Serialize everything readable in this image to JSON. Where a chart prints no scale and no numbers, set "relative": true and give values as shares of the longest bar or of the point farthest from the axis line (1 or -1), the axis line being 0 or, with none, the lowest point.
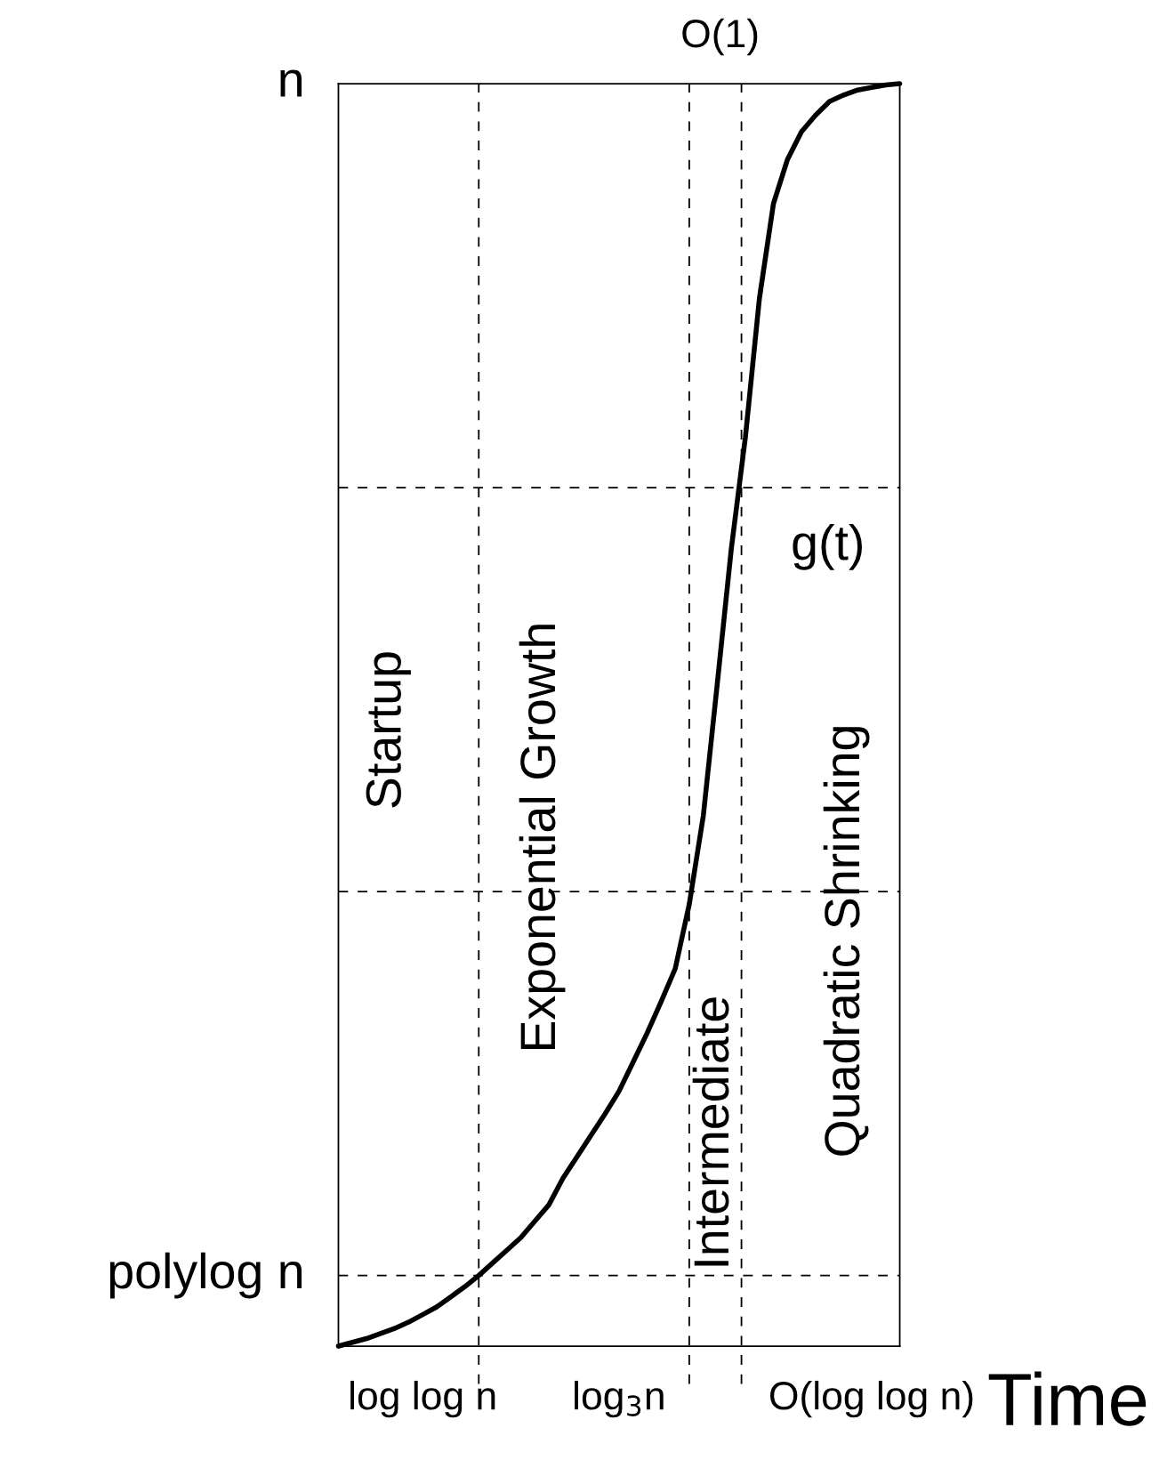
{
  "chart_data": {
    "type": "line",
    "relative": true,
    "xlabel": "Time",
    "tick_labels": "x",
    "grid": false,
    "legend": false,
    "categories": [
      null,
      null,
      null,
      null,
      null,
      null,
      "log log n",
      null,
      null,
      null,
      null,
      null,
      null,
      null,
      null,
      null,
      null,
      null,
      null,
      null,
      "log$_{3}$n",
      null,
      null,
      null,
      null,
      null,
      null,
      null,
      null,
      null,
      null,
      null,
      null,
      null,
      null,
      null,
      null,
      null,
      "O(log log n)",
      null,
      null
    ],
    "series": [
      {
        "color": "#000000",
        "values": [
          0,
          0.003,
          0.006,
          0.01,
          0.014,
          0.019,
          0.025,
          0.031,
          0.039,
          0.047,
          0.056,
          0.066,
          0.076,
          0.086,
          0.099,
          0.112,
          0.133,
          0.15,
          0.167,
          0.184,
          0.202,
          0.225,
          0.248,
          0.273,
          0.299,
          0.35,
          0.42,
          0.525,
          0.632,
          0.72,
          0.83,
          0.905,
          0.94,
          0.962,
          0.975,
          0.986,
          0.991,
          0.995,
          0.997,
          0.999,
          1
        ]
      }
    ],
    "ref_lines": [
      {
        "axis": "y",
        "value": 0.056,
        "label": "polylog n",
        "line_style": "dashed"
      },
      {
        "axis": "y",
        "value": 0.36,
        "line_style": "dashed"
      },
      {
        "axis": "y",
        "value": 0.68,
        "line_style": "dashed"
      },
      {
        "axis": "y",
        "value": 1,
        "label": "n",
        "line_style": "solid"
      }
    ],
    "annotations": [
      "Startup",
      "Exponential Growth",
      "Intermediate",
      "Quadratic Shrinking",
      "g(t)",
      "O(1)"
    ]
  }
}
